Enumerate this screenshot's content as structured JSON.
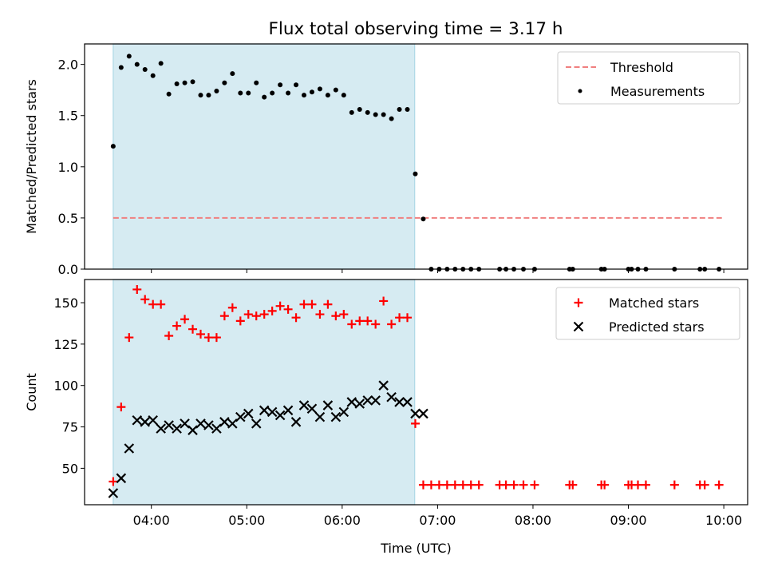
{
  "title": "Flux total observing time = 3.17 h",
  "chart_data": [
    {
      "type": "scatter",
      "ylabel": "Matched/Predicted stars",
      "ylim": [
        0,
        2.2
      ],
      "yticks": [
        "0.0",
        "0.5",
        "1.0",
        "1.5",
        "2.0"
      ],
      "xlim_hours": [
        3.3,
        10.25
      ],
      "shaded_span_hours": [
        3.6,
        6.76
      ],
      "shaded_color": "#add8e6",
      "threshold": {
        "label": "Threshold",
        "value": 0.5,
        "x_range_hours": [
          3.6,
          9.98
        ],
        "color": "#f08080"
      },
      "legend": {
        "placement": "upper right",
        "entries": [
          "Threshold",
          "Measurements"
        ]
      },
      "series": [
        {
          "name": "Measurements",
          "marker": "dot",
          "color": "#000000",
          "x": [
            "03:36",
            "03:41",
            "03:46",
            "03:51",
            "03:56",
            "04:01",
            "04:06",
            "04:11",
            "04:16",
            "04:21",
            "04:26",
            "04:31",
            "04:36",
            "04:41",
            "04:46",
            "04:51",
            "04:56",
            "05:01",
            "05:06",
            "05:11",
            "05:16",
            "05:21",
            "05:26",
            "05:31",
            "05:36",
            "05:41",
            "05:46",
            "05:51",
            "05:56",
            "06:01",
            "06:06",
            "06:11",
            "06:16",
            "06:21",
            "06:26",
            "06:31",
            "06:36",
            "06:41",
            "06:46",
            "06:51",
            "06:56",
            "07:01",
            "07:06",
            "07:11",
            "07:16",
            "07:21",
            "07:26",
            "07:39",
            "07:43",
            "07:48",
            "07:54",
            "08:01",
            "08:23",
            "08:25",
            "08:43",
            "08:45",
            "09:00",
            "09:02",
            "09:06",
            "09:11",
            "09:29",
            "09:45",
            "09:48",
            "09:57"
          ],
          "y": [
            1.2,
            1.97,
            2.08,
            2.0,
            1.95,
            1.89,
            2.01,
            1.71,
            1.81,
            1.82,
            1.83,
            1.7,
            1.7,
            1.74,
            1.82,
            1.91,
            1.72,
            1.72,
            1.82,
            1.68,
            1.72,
            1.8,
            1.72,
            1.8,
            1.7,
            1.73,
            1.76,
            1.7,
            1.75,
            1.7,
            1.53,
            1.56,
            1.53,
            1.51,
            1.51,
            1.47,
            1.56,
            1.56,
            0.93,
            0.49,
            0,
            0,
            0,
            0,
            0,
            0,
            0,
            0,
            0,
            0,
            0,
            0,
            0,
            0,
            0,
            0,
            0,
            0,
            0,
            0,
            0,
            0,
            0,
            0
          ]
        }
      ]
    },
    {
      "type": "scatter",
      "xlabel": "Time (UTC)",
      "ylabel": "Count",
      "ylim": [
        28,
        164
      ],
      "yticks": [
        "50",
        "75",
        "100",
        "125",
        "150"
      ],
      "xticks": [
        "04:00",
        "05:00",
        "06:00",
        "07:00",
        "08:00",
        "09:00",
        "10:00"
      ],
      "xlim_hours": [
        3.3,
        10.25
      ],
      "shaded_span_hours": [
        3.6,
        6.76
      ],
      "legend": {
        "placement": "upper right",
        "entries": [
          "Matched stars",
          "Predicted stars"
        ]
      },
      "series": [
        {
          "name": "Matched stars",
          "marker": "plus",
          "color": "#ff0000",
          "x": [
            "03:36",
            "03:41",
            "03:46",
            "03:51",
            "03:56",
            "04:01",
            "04:06",
            "04:11",
            "04:16",
            "04:21",
            "04:26",
            "04:31",
            "04:36",
            "04:41",
            "04:46",
            "04:51",
            "04:56",
            "05:01",
            "05:06",
            "05:11",
            "05:16",
            "05:21",
            "05:26",
            "05:31",
            "05:36",
            "05:41",
            "05:46",
            "05:51",
            "05:56",
            "06:01",
            "06:06",
            "06:11",
            "06:16",
            "06:21",
            "06:26",
            "06:31",
            "06:36",
            "06:41",
            "06:46",
            "06:51",
            "06:56",
            "07:01",
            "07:06",
            "07:11",
            "07:16",
            "07:21",
            "07:26",
            "07:39",
            "07:43",
            "07:48",
            "07:54",
            "08:01",
            "08:23",
            "08:25",
            "08:43",
            "08:45",
            "09:00",
            "09:02",
            "09:06",
            "09:11",
            "09:29",
            "09:45",
            "09:48",
            "09:57"
          ],
          "y": [
            42,
            87,
            129,
            158,
            152,
            149,
            149,
            130,
            136,
            140,
            134,
            131,
            129,
            129,
            142,
            147,
            139,
            143,
            142,
            143,
            145,
            148,
            146,
            141,
            149,
            149,
            143,
            149,
            142,
            143,
            137,
            139,
            139,
            137,
            151,
            137,
            141,
            141,
            77,
            40,
            40,
            40,
            40,
            40,
            40,
            40,
            40,
            40,
            40,
            40,
            40,
            40,
            40,
            40,
            40,
            40,
            40,
            40,
            40,
            40,
            40,
            40,
            40,
            40
          ]
        },
        {
          "name": "Predicted stars",
          "marker": "x",
          "color": "#000000",
          "x": [
            "03:36",
            "03:41",
            "03:46",
            "03:51",
            "03:56",
            "04:01",
            "04:06",
            "04:11",
            "04:16",
            "04:21",
            "04:26",
            "04:31",
            "04:36",
            "04:41",
            "04:46",
            "04:51",
            "04:56",
            "05:01",
            "05:06",
            "05:11",
            "05:16",
            "05:21",
            "05:26",
            "05:31",
            "05:36",
            "05:41",
            "05:46",
            "05:51",
            "05:56",
            "06:01",
            "06:06",
            "06:11",
            "06:16",
            "06:21",
            "06:26",
            "06:31",
            "06:36",
            "06:41",
            "06:46",
            "06:51"
          ],
          "y": [
            35,
            44,
            62,
            79,
            78,
            79,
            74,
            76,
            74,
            77,
            73,
            77,
            76,
            74,
            78,
            77,
            81,
            83,
            77,
            85,
            84,
            82,
            85,
            78,
            88,
            86,
            81,
            88,
            81,
            84,
            90,
            89,
            91,
            91,
            100,
            93,
            90,
            90,
            83,
            83
          ]
        }
      ]
    }
  ]
}
